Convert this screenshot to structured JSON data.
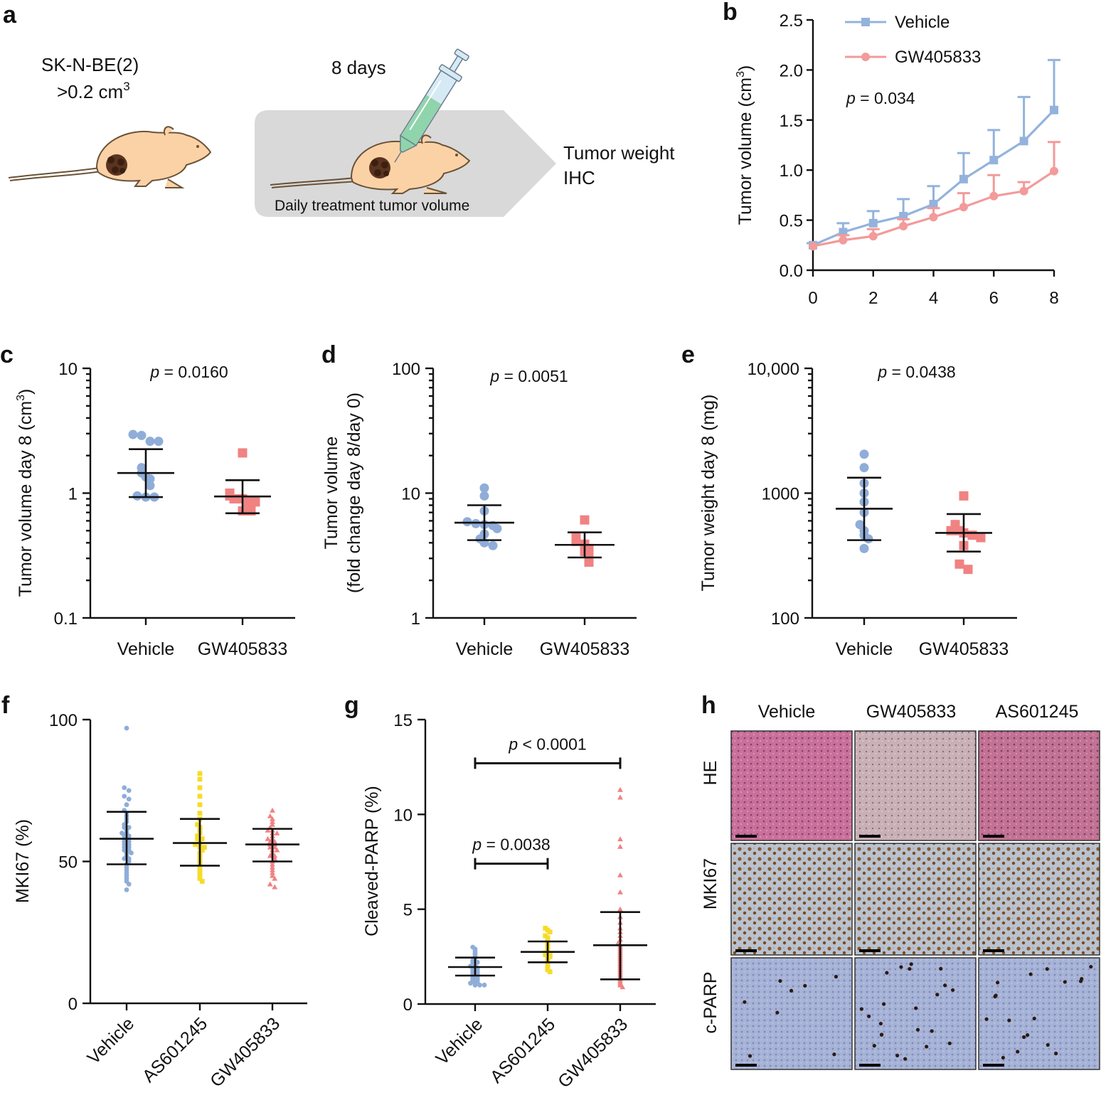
{
  "colors": {
    "vehicle": "#8fadd8",
    "vehicle_line": "#93b3dc",
    "gw": "#f08282",
    "gw_line": "#f39a9a",
    "as": "#f5dc2c",
    "mouse_fill": "#fbd2a6",
    "mouse_stroke": "#6a5238",
    "tumor": "#5a3420",
    "arrow_bg": "#d9d9d9",
    "syringe_liquid": "#8fd4ab",
    "he_bg": "#c9709a",
    "he_bg_gw": "#c9b0b6",
    "he_bg_as": "#c27293",
    "mki_bg": "#b9c2cf",
    "mki_dot": "#8a5a2c",
    "cparp_bg": "#a7b3d6",
    "cparp_dot": "#2b1a12"
  },
  "panel_a": {
    "label": "a",
    "cell_line": "SK-N-BE(2)",
    "volume_text": ">0.2 cm",
    "volume_sup": "3",
    "days": "8 days",
    "treatment": "Daily treatment tumor volume",
    "endpoint_1": "Tumor weight",
    "endpoint_2": "IHC",
    "icons": [
      "mouse-icon",
      "tumor-icon",
      "syringe-icon",
      "arrow-shape"
    ]
  },
  "panel_h": {
    "label": "h",
    "columns": [
      "Vehicle",
      "GW405833",
      "AS601245"
    ],
    "rows": [
      "HE",
      "MKI67",
      "c-PARP"
    ]
  },
  "chart_data": [
    {
      "panel": "b",
      "type": "line",
      "ylabel": "Tumor volume (cm",
      "ylabel_sup": "3",
      "ylabel_end": ")",
      "xlabel": "",
      "xlim": [
        0,
        8
      ],
      "ylim": [
        0,
        2.5
      ],
      "xticks": [
        "0",
        "2",
        "4",
        "6",
        "8"
      ],
      "yticks": [
        "0.0",
        "0.5",
        "1.0",
        "1.5",
        "2.0",
        "2.5"
      ],
      "p_label": "p",
      "p_value": " = 0.034",
      "legend_position": "top",
      "x": [
        0,
        1,
        2,
        3,
        4,
        5,
        6,
        7,
        8
      ],
      "series": [
        {
          "name": "Vehicle",
          "marker": "square",
          "values": [
            0.25,
            0.38,
            0.47,
            0.54,
            0.66,
            0.91,
            1.1,
            1.29,
            1.6
          ],
          "err_upper": [
            0.27,
            0.47,
            0.59,
            0.71,
            0.84,
            1.17,
            1.4,
            1.73,
            2.1
          ]
        },
        {
          "name": "GW405833",
          "marker": "circle",
          "values": [
            0.24,
            0.3,
            0.34,
            0.44,
            0.53,
            0.63,
            0.74,
            0.79,
            0.99
          ],
          "err_upper": [
            0.25,
            0.35,
            0.41,
            0.51,
            0.62,
            0.77,
            0.95,
            0.88,
            1.28
          ]
        }
      ]
    },
    {
      "panel": "c",
      "type": "scatter",
      "scale": "log",
      "ylabel": "Tumor volume day 8 (cm",
      "ylabel_sup": "3",
      "ylabel_end": ")",
      "ylim": [
        0.1,
        10
      ],
      "yticks": [
        "10",
        "1",
        "0.1"
      ],
      "categories": [
        "Vehicle",
        "GW405833"
      ],
      "p_label": "p",
      "p_value": " = 0.0160",
      "groups": [
        {
          "name": "Vehicle",
          "marker": "circle",
          "mean": 1.45,
          "sd": [
            0.93,
            2.25
          ],
          "values": [
            2.95,
            2.9,
            2.6,
            2.6,
            1.6,
            1.45,
            1.35,
            1.3,
            1.15,
            0.95,
            0.93,
            0.93
          ]
        },
        {
          "name": "GW405833",
          "marker": "square",
          "mean": 0.94,
          "sd": [
            0.69,
            1.27
          ],
          "values": [
            2.1,
            1.0,
            0.95,
            0.9,
            0.9,
            0.85,
            0.85,
            0.8,
            0.72,
            0.72
          ]
        }
      ]
    },
    {
      "panel": "d",
      "type": "scatter",
      "scale": "log",
      "ylabel": "Tumor volume",
      "ylabel2": "(fold change day 8/day 0)",
      "ylim": [
        1,
        100
      ],
      "yticks": [
        "100",
        "10",
        "1"
      ],
      "categories": [
        "Vehicle",
        "GW405833"
      ],
      "p_label": "p",
      "p_value": " = 0.0051",
      "groups": [
        {
          "name": "Vehicle",
          "marker": "circle",
          "mean": 5.8,
          "sd": [
            4.2,
            8.0
          ],
          "values": [
            11.0,
            9.5,
            7.2,
            5.9,
            5.7,
            5.6,
            5.5,
            5.2,
            4.7,
            4.3,
            4.0,
            3.8
          ]
        },
        {
          "name": "GW405833",
          "marker": "square",
          "mean": 3.85,
          "sd": [
            3.05,
            4.85
          ],
          "values": [
            6.1,
            4.4,
            4.1,
            3.9,
            3.7,
            3.6,
            3.4,
            3.2,
            3.0,
            2.8
          ]
        }
      ]
    },
    {
      "panel": "e",
      "type": "scatter",
      "scale": "log",
      "ylabel": "Tumor weight day 8 (mg)",
      "ylim": [
        100,
        10000
      ],
      "yticks": [
        "10,000",
        "1000",
        "100"
      ],
      "categories": [
        "Vehicle",
        "GW405833"
      ],
      "p_label": "p",
      "p_value": " = 0.0438",
      "groups": [
        {
          "name": "Vehicle",
          "marker": "circle",
          "mean": 750,
          "sd": [
            420,
            1330
          ],
          "values": [
            2050,
            1600,
            1200,
            1000,
            850,
            700,
            560,
            500,
            460,
            430,
            360
          ]
        },
        {
          "name": "GW405833",
          "marker": "square",
          "mean": 480,
          "sd": [
            340,
            680
          ],
          "values": [
            950,
            560,
            500,
            500,
            480,
            460,
            440,
            380,
            270,
            245
          ]
        }
      ]
    },
    {
      "panel": "f",
      "type": "scatter",
      "ylabel": "MKI67 (%)",
      "ylim": [
        0,
        100
      ],
      "yticks": [
        "100",
        "50",
        "0"
      ],
      "categories": [
        "Vehicle",
        "AS601245",
        "GW405833"
      ],
      "groups": [
        {
          "name": "Vehicle",
          "marker": "circle",
          "mean": 58,
          "sd": [
            49,
            67.5
          ],
          "values": [
            97,
            76,
            75,
            73,
            72,
            70,
            68,
            67,
            66,
            65,
            64,
            63,
            62,
            62,
            61,
            60,
            60,
            59,
            59,
            58,
            58,
            57,
            57,
            56,
            56,
            55,
            55,
            54,
            54,
            53,
            53,
            52,
            51,
            51,
            50,
            49,
            48,
            47,
            46,
            45,
            44,
            43,
            42,
            40
          ]
        },
        {
          "name": "AS601245",
          "marker": "square",
          "mean": 56.5,
          "sd": [
            48.5,
            65
          ],
          "values": [
            81,
            79,
            76,
            73,
            70,
            67,
            65,
            63,
            62,
            61,
            60,
            59,
            58,
            58,
            57,
            56,
            56,
            55,
            55,
            54,
            53,
            52,
            51,
            50,
            49,
            48,
            47,
            46,
            45,
            44,
            43
          ]
        },
        {
          "name": "GW405833",
          "marker": "triangle",
          "mean": 56,
          "sd": [
            50,
            61.5
          ],
          "values": [
            68,
            66,
            65,
            64,
            63,
            62,
            61,
            61,
            60,
            60,
            59,
            58,
            58,
            57,
            57,
            56,
            56,
            55,
            55,
            54,
            54,
            53,
            52,
            52,
            51,
            50,
            49,
            48,
            47,
            46,
            45,
            44,
            42,
            41
          ]
        }
      ]
    },
    {
      "panel": "g",
      "type": "scatter",
      "ylabel": "Cleaved-PARP (%)",
      "ylim": [
        0,
        15
      ],
      "yticks": [
        "15",
        "10",
        "5",
        "0"
      ],
      "categories": [
        "Vehicle",
        "AS601245",
        "GW405833"
      ],
      "comparisons": [
        {
          "label": "p",
          "value": " = 0.0038",
          "from": 0,
          "to": 1,
          "y": 7.4
        },
        {
          "label": "p",
          "value": " < 0.0001",
          "from": 0,
          "to": 2,
          "y": 12.7
        }
      ],
      "groups": [
        {
          "name": "Vehicle",
          "marker": "circle",
          "mean": 1.95,
          "sd": [
            1.5,
            2.45
          ],
          "values": [
            3.0,
            2.9,
            2.8,
            2.7,
            2.6,
            2.5,
            2.4,
            2.3,
            2.2,
            2.2,
            2.1,
            2.0,
            2.0,
            1.9,
            1.9,
            1.8,
            1.8,
            1.7,
            1.7,
            1.6,
            1.6,
            1.5,
            1.5,
            1.4,
            1.4,
            1.3,
            1.3,
            1.2,
            1.2,
            1.1,
            1.1,
            1.0,
            1.0,
            1.0
          ]
        },
        {
          "name": "AS601245",
          "marker": "square",
          "mean": 2.75,
          "sd": [
            2.2,
            3.3
          ],
          "values": [
            4.0,
            3.9,
            3.8,
            3.6,
            3.5,
            3.4,
            3.3,
            3.2,
            3.1,
            3.0,
            2.9,
            2.8,
            2.7,
            2.6,
            2.6,
            2.5,
            2.4,
            2.3,
            2.2,
            2.1,
            2.0,
            1.9,
            1.8,
            1.7
          ]
        },
        {
          "name": "GW405833",
          "marker": "triangle",
          "mean": 3.1,
          "sd": [
            1.3,
            4.85
          ],
          "values": [
            11.3,
            10.9,
            8.7,
            8.3,
            6.8,
            5.9,
            5.0,
            4.6,
            4.3,
            4.0,
            3.8,
            3.6,
            3.4,
            3.2,
            3.1,
            3.0,
            2.9,
            2.8,
            2.7,
            2.6,
            2.5,
            2.4,
            2.3,
            2.2,
            2.1,
            2.0,
            1.9,
            1.8,
            1.7,
            1.6,
            1.5,
            1.4,
            1.3,
            1.2,
            1.1,
            1.0,
            0.9
          ]
        }
      ]
    }
  ]
}
